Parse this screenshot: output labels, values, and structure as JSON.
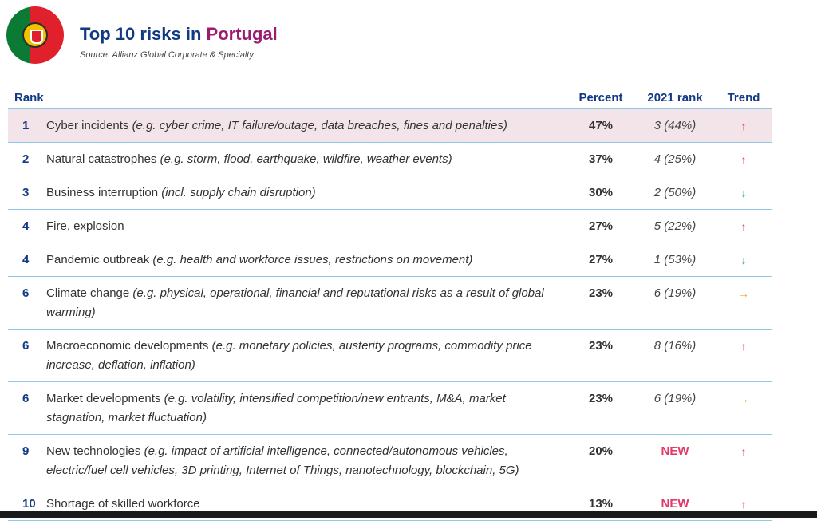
{
  "header": {
    "title_main": "Top 10 risks in ",
    "title_accent": "Portugal",
    "source": "Source: Allianz Global Corporate & Specialty"
  },
  "colors": {
    "title": "#123a84",
    "accent": "#9b1c6e",
    "up": "#e8304f",
    "down": "#3fa94b",
    "flat": "#f2a623",
    "new": "#e33a6d",
    "highlight_row": "#f3e4ea",
    "rule": "#8fc9e6"
  },
  "table": {
    "headers": {
      "rank": "Rank",
      "percent": "Percent",
      "prev_rank": "2021 rank",
      "trend": "Trend"
    },
    "rows": [
      {
        "rank": "1",
        "name": "Cyber incidents",
        "example": "(e.g. cyber crime, IT failure/outage, data breaches, fines and penalties)",
        "percent": "47%",
        "prev": "3 (44%)",
        "trend": "↑",
        "trend_dir": "up"
      },
      {
        "rank": "2",
        "name": "Natural catastrophes",
        "example": "(e.g. storm, flood, earthquake, wildfire, weather events)",
        "percent": "37%",
        "prev": "4 (25%)",
        "trend": "↑",
        "trend_dir": "up"
      },
      {
        "rank": "3",
        "name": "Business interruption",
        "example": "(incl. supply chain disruption)",
        "percent": "30%",
        "prev": "2 (50%)",
        "trend": "↓",
        "trend_dir": "down"
      },
      {
        "rank": "4",
        "name": "Fire, explosion",
        "example": "",
        "percent": "27%",
        "prev": "5 (22%)",
        "trend": "↑",
        "trend_dir": "up"
      },
      {
        "rank": "4",
        "name": "Pandemic outbreak",
        "example": "(e.g. health and workforce issues, restrictions on movement)",
        "percent": "27%",
        "prev": "1 (53%)",
        "trend": "↓",
        "trend_dir": "down"
      },
      {
        "rank": "6",
        "name": "Climate change",
        "example": "(e.g. physical, operational, financial and reputational risks as a result of global warming)",
        "percent": "23%",
        "prev": "6 (19%)",
        "trend": "→",
        "trend_dir": "flat"
      },
      {
        "rank": "6",
        "name": "Macroeconomic developments",
        "example": "(e.g. monetary policies, austerity programs, commodity price increase, deflation, inflation)",
        "percent": "23%",
        "prev": "8 (16%)",
        "trend": "↑",
        "trend_dir": "up"
      },
      {
        "rank": "6",
        "name": "Market developments",
        "example": "(e.g. volatility, intensified competition/new entrants, M&A, market stagnation, market fluctuation)",
        "percent": "23%",
        "prev": "6 (19%)",
        "trend": "→",
        "trend_dir": "flat"
      },
      {
        "rank": "9",
        "name": "New technologies",
        "example": "(e.g. impact of artificial intelligence, connected/autonomous vehicles, electric/fuel cell vehicles, 3D printing, Internet of Things, nanotechnology, blockchain, 5G)",
        "percent": "20%",
        "prev": "NEW",
        "trend": "↑",
        "trend_dir": "up"
      },
      {
        "rank": "10",
        "name": "Shortage of skilled workforce",
        "example": "",
        "percent": "13%",
        "prev": "NEW",
        "trend": "↑",
        "trend_dir": "up"
      }
    ]
  }
}
